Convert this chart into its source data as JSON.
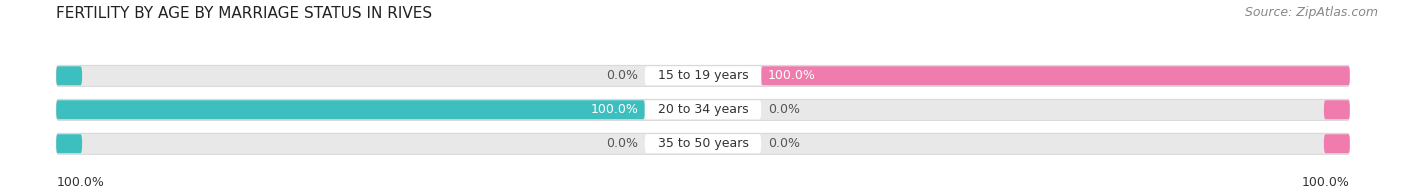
{
  "title": "FERTILITY BY AGE BY MARRIAGE STATUS IN RIVES",
  "source": "Source: ZipAtlas.com",
  "categories": [
    "15 to 19 years",
    "20 to 34 years",
    "35 to 50 years"
  ],
  "married_values": [
    0.0,
    100.0,
    0.0
  ],
  "unmarried_values": [
    100.0,
    0.0,
    0.0
  ],
  "married_color": "#3DBFBF",
  "unmarried_color": "#F07BAD",
  "bar_bg_color": "#E8E8E8",
  "bar_bg_border": "#D0D0D0",
  "label_bg_color": "#FFFFFF",
  "min_stub": 4.0,
  "title_fontsize": 11,
  "source_fontsize": 9,
  "label_fontsize": 9,
  "value_fontsize": 9,
  "legend_fontsize": 10,
  "bottom_left": "100.0%",
  "bottom_right": "100.0%"
}
